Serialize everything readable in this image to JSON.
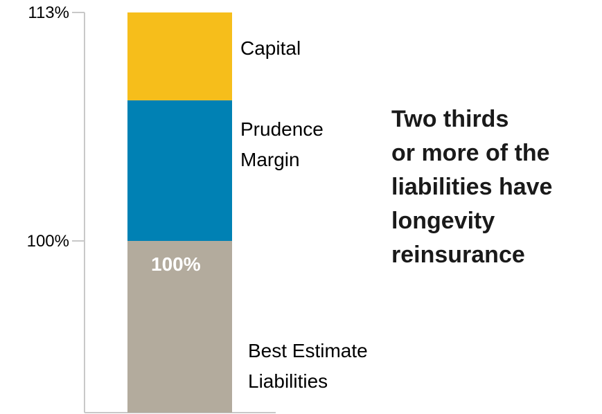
{
  "chart_data": {
    "type": "bar",
    "stacked": true,
    "categories": [
      ""
    ],
    "series": [
      {
        "name": "Best Estimate Liabilities",
        "values": [
          100
        ],
        "color": "#b3ab9d",
        "label_lines": [
          "Best Estimate",
          "Liabilities"
        ],
        "data_label": "100%"
      },
      {
        "name": "Prudence Margin",
        "values": [
          8
        ],
        "color": "#0081b4",
        "label_lines": [
          "Prudence",
          "Margin"
        ]
      },
      {
        "name": "Capital",
        "values": [
          5
        ],
        "color": "#f6be1b",
        "label_lines": [
          "Capital"
        ]
      }
    ],
    "yticks": [
      {
        "value": 100,
        "label": "100%"
      },
      {
        "value": 113,
        "label": "113%"
      }
    ],
    "ylim": [
      0,
      113
    ],
    "title": "",
    "xlabel": "",
    "ylabel": "",
    "grid": false,
    "axis_color": "#c8c8c8",
    "annotation": {
      "lines": [
        "Two thirds",
        "or more of the",
        "liabilities have",
        "longevity",
        "reinsurance"
      ]
    }
  }
}
